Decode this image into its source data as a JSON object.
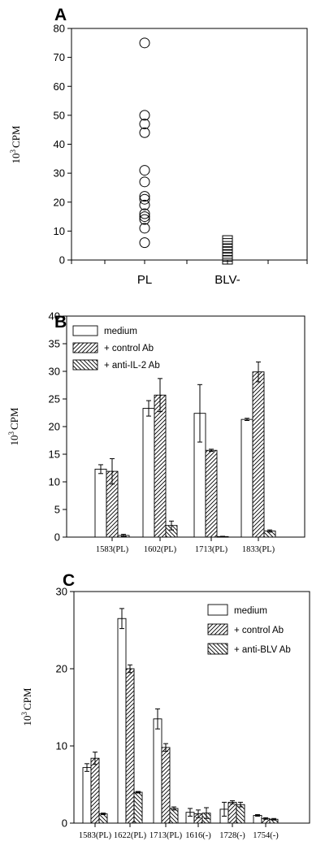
{
  "chart_data": [
    {
      "panel": "A",
      "type": "scatter",
      "ylabel_base": "10",
      "ylabel_exp": "3",
      "ylabel_unit": "CPM",
      "ylim": [
        0,
        80
      ],
      "yticks": [
        0,
        10,
        20,
        30,
        40,
        50,
        60,
        70,
        80
      ],
      "categories": [
        "PL",
        "BLV-"
      ],
      "series": [
        {
          "category": "PL",
          "marker": "circle",
          "values": [
            75,
            50,
            47,
            44,
            31,
            27,
            22,
            21,
            19,
            16,
            15,
            14,
            11,
            6
          ]
        },
        {
          "category": "BLV-",
          "marker": "square",
          "values": [
            7,
            6,
            5,
            4,
            3,
            2,
            1,
            0
          ]
        }
      ],
      "grid": false
    },
    {
      "panel": "B",
      "type": "bar",
      "ylabel_base": "10",
      "ylabel_exp": "3",
      "ylabel_unit": "CPM",
      "ylim": [
        0,
        40
      ],
      "yticks": [
        0,
        5,
        10,
        15,
        20,
        25,
        30,
        35,
        40
      ],
      "categories": [
        "1583(PL)",
        "1602(PL)",
        "1713(PL)",
        "1833(PL)"
      ],
      "series": [
        {
          "name": "medium",
          "pattern": "none",
          "values": [
            12.3,
            23.3,
            22.4,
            21.3
          ],
          "errors": [
            0.8,
            1.4,
            5.2,
            0.2
          ]
        },
        {
          "name": "+ control Ab",
          "pattern": "hatch-right",
          "values": [
            11.9,
            25.7,
            15.7,
            29.9
          ],
          "errors": [
            2.3,
            3.0,
            0.2,
            1.8
          ]
        },
        {
          "name": "+ anti-IL-2 Ab",
          "pattern": "hatch-left",
          "values": [
            0.3,
            2.1,
            0.1,
            1.1
          ],
          "errors": [
            0.2,
            0.8,
            0.05,
            0.2
          ]
        }
      ],
      "legend_position": "top-left",
      "grid": false
    },
    {
      "panel": "C",
      "type": "bar",
      "ylabel_base": "10",
      "ylabel_exp": "3",
      "ylabel_unit": "CPM",
      "ylim": [
        0,
        30
      ],
      "yticks": [
        0,
        10,
        20,
        30
      ],
      "categories": [
        "1583(PL)",
        "1622(PL)",
        "1713(PL)",
        "1616(-)",
        "1728(-)",
        "1754(-)"
      ],
      "series": [
        {
          "name": "medium",
          "pattern": "none",
          "values": [
            7.2,
            26.5,
            13.5,
            1.4,
            1.8,
            1.0
          ],
          "errors": [
            0.5,
            1.3,
            1.3,
            0.5,
            0.9,
            0.1
          ]
        },
        {
          "name": "+ control Ab",
          "pattern": "hatch-right",
          "values": [
            8.4,
            20.0,
            9.8,
            1.2,
            2.7,
            0.6
          ],
          "errors": [
            0.8,
            0.5,
            0.5,
            0.5,
            0.2,
            0.1
          ]
        },
        {
          "name": "+ anti-BLV Ab",
          "pattern": "hatch-left",
          "values": [
            1.2,
            4.0,
            1.9,
            1.3,
            2.4,
            0.5
          ],
          "errors": [
            0.1,
            0.1,
            0.2,
            0.7,
            0.3,
            0.1
          ]
        }
      ],
      "legend_position": "top-right",
      "grid": false
    }
  ]
}
